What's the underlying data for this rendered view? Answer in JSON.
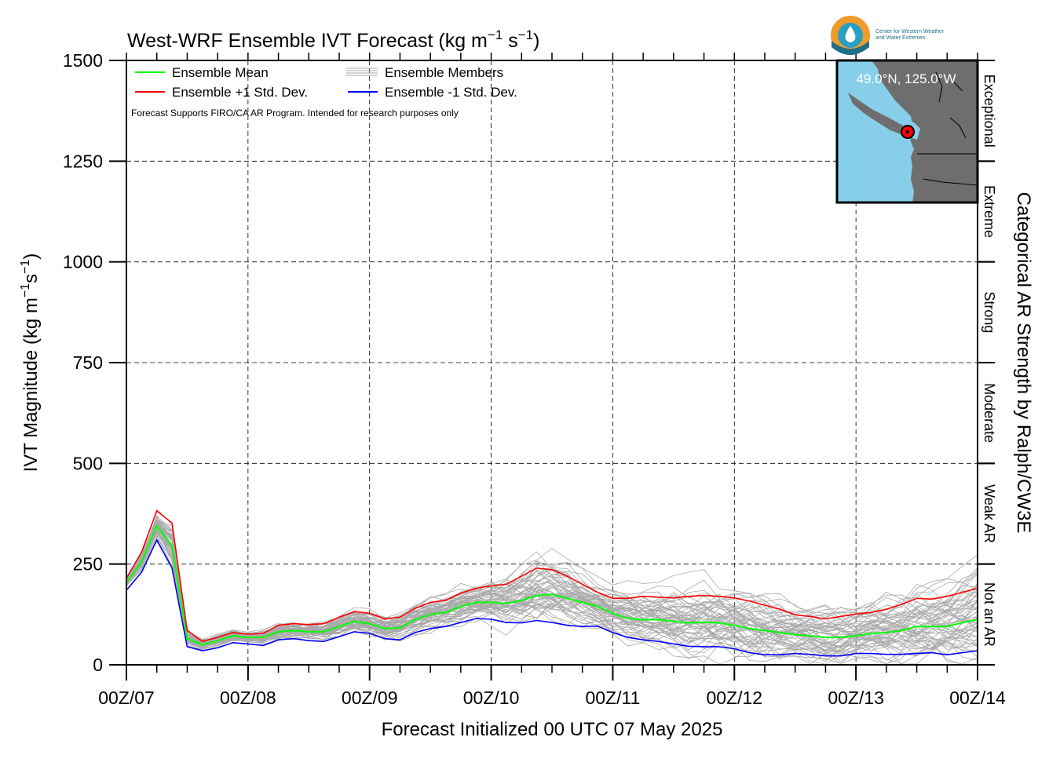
{
  "chart_data": {
    "type": "line",
    "title": "West-WRF Ensemble IVT Forecast (kg m",
    "title_sup1": "−1",
    "title_mid": " s",
    "title_sup2": "−1",
    "title_end": ")",
    "ylabel": "IVT Magnitude (kg m",
    "ylabel_sup1": "−1",
    "ylabel_mid": "s",
    "ylabel_sup2": "−1",
    "ylabel_end": ")",
    "xlabel": "Forecast Initialized 00 UTC 07 May 2025",
    "right_label": "Categorical AR Strength by Ralph/CW3E",
    "ylim": [
      0,
      1500
    ],
    "xlim": [
      0,
      168
    ],
    "x_unit": "forecast hour",
    "yticks": [
      "0",
      "250",
      "500",
      "750",
      "1000",
      "1250",
      "1500"
    ],
    "xticks": [
      "00Z/07",
      "00Z/08",
      "00Z/09",
      "00Z/10",
      "00Z/11",
      "00Z/12",
      "00Z/13",
      "00Z/14"
    ],
    "grid": true,
    "legend_placement": "top-left",
    "legend": [
      {
        "label": "Ensemble Mean",
        "color": "#00ff00"
      },
      {
        "label": "Ensemble Members",
        "color": "#a9a9a9"
      },
      {
        "label": "Ensemble +1 Std. Dev.",
        "color": "#ff0000"
      },
      {
        "label": "Ensemble -1 Std. Dev.",
        "color": "#0000ff"
      }
    ],
    "note": "Forecast Supports FIRO/CA AR Program. Intended for research purposes only",
    "categories_ar": [
      {
        "label": "Not an AR",
        "range": [
          0,
          250
        ]
      },
      {
        "label": "Weak AR",
        "range": [
          250,
          500
        ]
      },
      {
        "label": "Moderate",
        "range": [
          500,
          750
        ]
      },
      {
        "label": "Strong",
        "range": [
          750,
          1000
        ]
      },
      {
        "label": "Extreme",
        "range": [
          1000,
          1250
        ]
      },
      {
        "label": "Exceptional",
        "range": [
          1250,
          1500
        ]
      }
    ],
    "inset": {
      "location_label": "49.0°N, 125.0°W",
      "ocean_color": "#87ceeb",
      "land_color": "#6e6e6e",
      "marker_color": "#ff0000"
    },
    "x": [
      0,
      3,
      6,
      9,
      12,
      15,
      18,
      21,
      24,
      27,
      30,
      33,
      36,
      39,
      42,
      45,
      48,
      51,
      54,
      57,
      60,
      63,
      66,
      69,
      72,
      75,
      78,
      81,
      84,
      87,
      90,
      93,
      96,
      99,
      102,
      105,
      108,
      111,
      114,
      117,
      120,
      123,
      126,
      129,
      132,
      135,
      138,
      141,
      144,
      147,
      150,
      153,
      156,
      159,
      162,
      165,
      168
    ],
    "series": [
      {
        "name": "Ensemble Mean",
        "color": "#00ff00",
        "values": [
          205,
          255,
          345,
          295,
          65,
          50,
          60,
          72,
          68,
          68,
          82,
          85,
          82,
          82,
          95,
          108,
          102,
          90,
          92,
          112,
          125,
          130,
          145,
          155,
          155,
          152,
          160,
          172,
          175,
          165,
          155,
          145,
          128,
          115,
          112,
          112,
          108,
          104,
          106,
          104,
          98,
          90,
          85,
          80,
          75,
          72,
          68,
          68,
          72,
          78,
          80,
          85,
          95,
          95,
          95,
          105,
          112
        ]
      },
      {
        "name": "Ensemble +1 Std. Dev.",
        "color": "#ff0000",
        "values": [
          215,
          280,
          382,
          352,
          85,
          58,
          68,
          80,
          76,
          78,
          98,
          102,
          100,
          102,
          118,
          132,
          128,
          114,
          118,
          140,
          155,
          160,
          178,
          190,
          196,
          200,
          220,
          240,
          236,
          220,
          200,
          180,
          165,
          165,
          170,
          168,
          166,
          170,
          172,
          170,
          166,
          158,
          148,
          138,
          124,
          120,
          114,
          120,
          126,
          130,
          138,
          150,
          165,
          163,
          170,
          180,
          190
        ]
      },
      {
        "name": "Ensemble -1 Std. Dev.",
        "color": "#0000ff",
        "values": [
          185,
          230,
          310,
          240,
          45,
          35,
          42,
          55,
          52,
          48,
          62,
          65,
          60,
          58,
          70,
          82,
          78,
          65,
          62,
          80,
          90,
          95,
          105,
          115,
          113,
          105,
          104,
          110,
          105,
          98,
          95,
          96,
          80,
          68,
          62,
          58,
          52,
          46,
          45,
          45,
          40,
          30,
          25,
          25,
          28,
          26,
          22,
          22,
          28,
          28,
          26,
          26,
          28,
          30,
          25,
          30,
          35
        ]
      }
    ]
  }
}
